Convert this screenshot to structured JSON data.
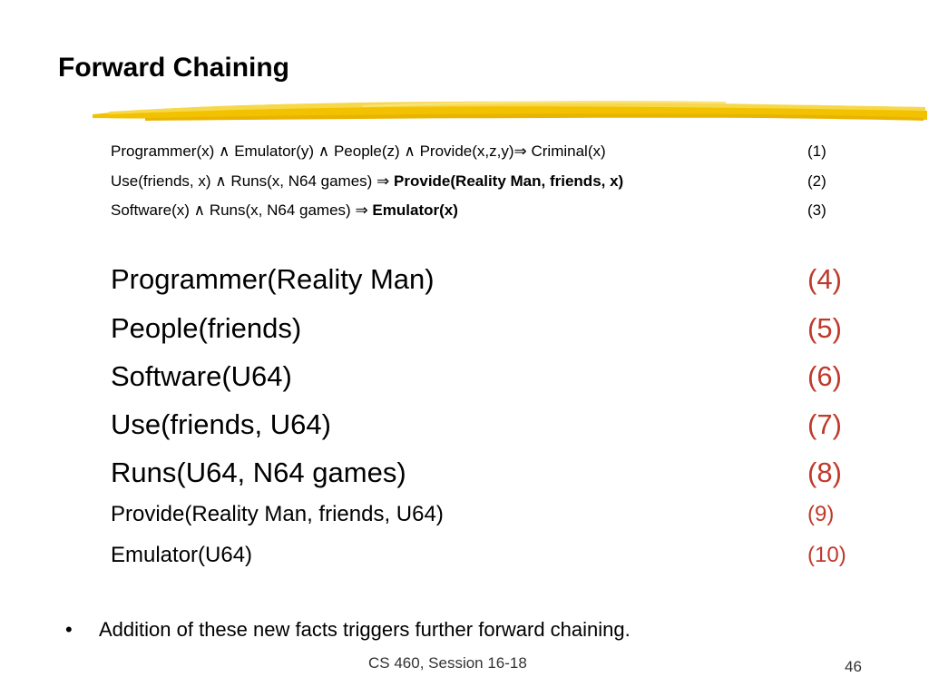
{
  "slide": {
    "title": "Forward Chaining",
    "accent_color": "#f2c200",
    "num_color": "#c0392b"
  },
  "rules": [
    {
      "segments": [
        {
          "text": "Programmer(x) ",
          "bold": false
        },
        {
          "text": "∧",
          "bold": false
        },
        {
          "text": " Emulator(y) ",
          "bold": false
        },
        {
          "text": "∧",
          "bold": false
        },
        {
          "text": " People(z) ",
          "bold": false
        },
        {
          "text": "∧",
          "bold": false
        },
        {
          "text": " Provide(x,z,y)",
          "bold": false
        },
        {
          "text": "⇒",
          "bold": false
        },
        {
          "text": " Criminal(x)",
          "bold": false
        }
      ],
      "number": "(1)"
    },
    {
      "segments": [
        {
          "text": "Use(friends, x) ",
          "bold": false
        },
        {
          "text": "∧",
          "bold": false
        },
        {
          "text": " Runs(x, N64 games) ",
          "bold": false
        },
        {
          "text": "⇒",
          "bold": false
        },
        {
          "text": " ",
          "bold": false
        },
        {
          "text": "Provide(Reality Man, friends, x)",
          "bold": true
        }
      ],
      "number": "(2)"
    },
    {
      "segments": [
        {
          "text": "Software(x) ",
          "bold": false
        },
        {
          "text": "∧",
          "bold": false
        },
        {
          "text": " Runs(x, N64 games) ",
          "bold": false
        },
        {
          "text": "⇒",
          "bold": false
        },
        {
          "text": " ",
          "bold": false
        },
        {
          "text": "Emulator(x)",
          "bold": true
        }
      ],
      "number": "(3)"
    }
  ],
  "facts": [
    {
      "text": "Programmer(Reality Man)",
      "number": "(4)"
    },
    {
      "text": "People(friends)",
      "number": "(5)"
    },
    {
      "text": "Software(U64)",
      "number": "(6)"
    },
    {
      "text": "Use(friends, U64)",
      "number": "(7)"
    },
    {
      "text": "Runs(U64, N64 games)",
      "number": "(8)"
    },
    {
      "text": "Provide(Reality Man, friends, U64)",
      "number": "(9)"
    },
    {
      "text": "Emulator(U64)",
      "number": "(10)"
    }
  ],
  "bullet": {
    "symbol": "•",
    "text": "Addition of these new facts triggers further forward chaining."
  },
  "footer": {
    "course": "CS 460,  Session 16-18",
    "page_number": "46"
  }
}
